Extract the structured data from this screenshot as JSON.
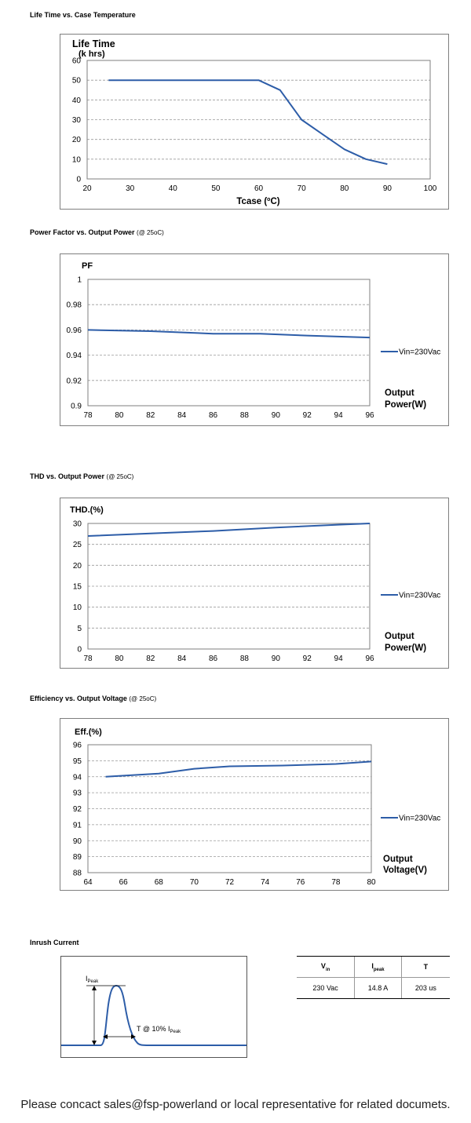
{
  "sections": {
    "life": {
      "title": "Life Time vs. Case Temperature",
      "condition": ""
    },
    "pf": {
      "title": "Power Factor vs. Output Power",
      "condition": "(@ 25oC)"
    },
    "thd": {
      "title": "THD vs. Output Power",
      "condition": "(@ 25oC)"
    },
    "eff": {
      "title": "Efficiency vs. Output Voltage",
      "condition": "(@ 25oC)"
    },
    "inrush": {
      "title": "Inrush Current"
    }
  },
  "chart_data": [
    {
      "type": "line",
      "ylabel_lines": [
        "Life Time",
        "(k hrs)"
      ],
      "xlabel": "Tcase (oC)",
      "xlim": [
        20,
        100
      ],
      "ylim": [
        0,
        60
      ],
      "xticks": [
        20,
        30,
        40,
        50,
        60,
        70,
        80,
        90,
        100
      ],
      "yticks": [
        0,
        10,
        20,
        30,
        40,
        50,
        60
      ],
      "grid": "horizontal dashed",
      "legend": "",
      "color": "#2d5da8",
      "series": [
        {
          "x": [
            25,
            60,
            65,
            70,
            75,
            80,
            85,
            90
          ],
          "y": [
            50,
            50,
            45,
            30,
            22.5,
            15,
            10,
            7.5
          ]
        }
      ]
    },
    {
      "type": "line",
      "ylabel_lines": [
        "PF"
      ],
      "xlabel_lines": [
        "Output",
        "Power(W)"
      ],
      "xlim": [
        78,
        96
      ],
      "ylim": [
        0.9,
        1
      ],
      "xticks": [
        78,
        80,
        82,
        84,
        86,
        88,
        90,
        92,
        94,
        96
      ],
      "yticks": [
        0.9,
        0.92,
        0.94,
        0.96,
        0.98,
        1
      ],
      "grid": "horizontal dashed",
      "legend": "right",
      "color": "#2d5da8",
      "series": [
        {
          "name": "Vin=230Vac",
          "x": [
            78,
            82,
            86,
            89,
            92,
            96
          ],
          "y": [
            0.96,
            0.959,
            0.957,
            0.957,
            0.9555,
            0.954
          ]
        }
      ]
    },
    {
      "type": "line",
      "ylabel_lines": [
        "THD.(%)"
      ],
      "xlabel_lines": [
        "Output",
        "Power(W)"
      ],
      "xlim": [
        78,
        96
      ],
      "ylim": [
        0,
        30
      ],
      "xticks": [
        78,
        80,
        82,
        84,
        86,
        88,
        90,
        92,
        94,
        96
      ],
      "yticks": [
        0,
        5,
        10,
        15,
        20,
        25,
        30
      ],
      "grid": "horizontal dashed",
      "legend": "right",
      "color": "#2d5da8",
      "series": [
        {
          "name": "Vin=230Vac",
          "x": [
            78,
            82,
            86,
            90,
            94,
            96
          ],
          "y": [
            27,
            27.6,
            28.2,
            29,
            29.7,
            30
          ]
        }
      ]
    },
    {
      "type": "line",
      "ylabel_lines": [
        "Eff.(%)"
      ],
      "xlabel_lines": [
        "Output",
        "Voltage(V)"
      ],
      "xlim": [
        64,
        80
      ],
      "ylim": [
        88,
        96
      ],
      "xticks": [
        64,
        66,
        68,
        70,
        72,
        74,
        76,
        78,
        80
      ],
      "yticks": [
        88,
        89,
        90,
        91,
        92,
        93,
        94,
        95,
        96
      ],
      "grid": "horizontal dashed",
      "legend": "right",
      "color": "#2d5da8",
      "series": [
        {
          "name": "Vin=230Vac",
          "x": [
            65,
            68,
            70,
            72,
            75,
            78,
            80
          ],
          "y": [
            94,
            94.2,
            94.5,
            94.65,
            94.7,
            94.8,
            94.95
          ]
        }
      ]
    }
  ],
  "inrush": {
    "peak_label": "I",
    "peak_sub": "Peak",
    "t_label": "T @ 10% I",
    "t_sub": "Peak",
    "table": {
      "headers": [
        {
          "main": "V",
          "sub": "in"
        },
        {
          "main": "I",
          "sub": "peak"
        },
        {
          "main": "T",
          "sub": ""
        }
      ],
      "row": [
        "230 Vac",
        "14.8 A",
        "203 us"
      ]
    }
  },
  "footer": "Please concact sales@fsp-powerland or local representative for related documets."
}
